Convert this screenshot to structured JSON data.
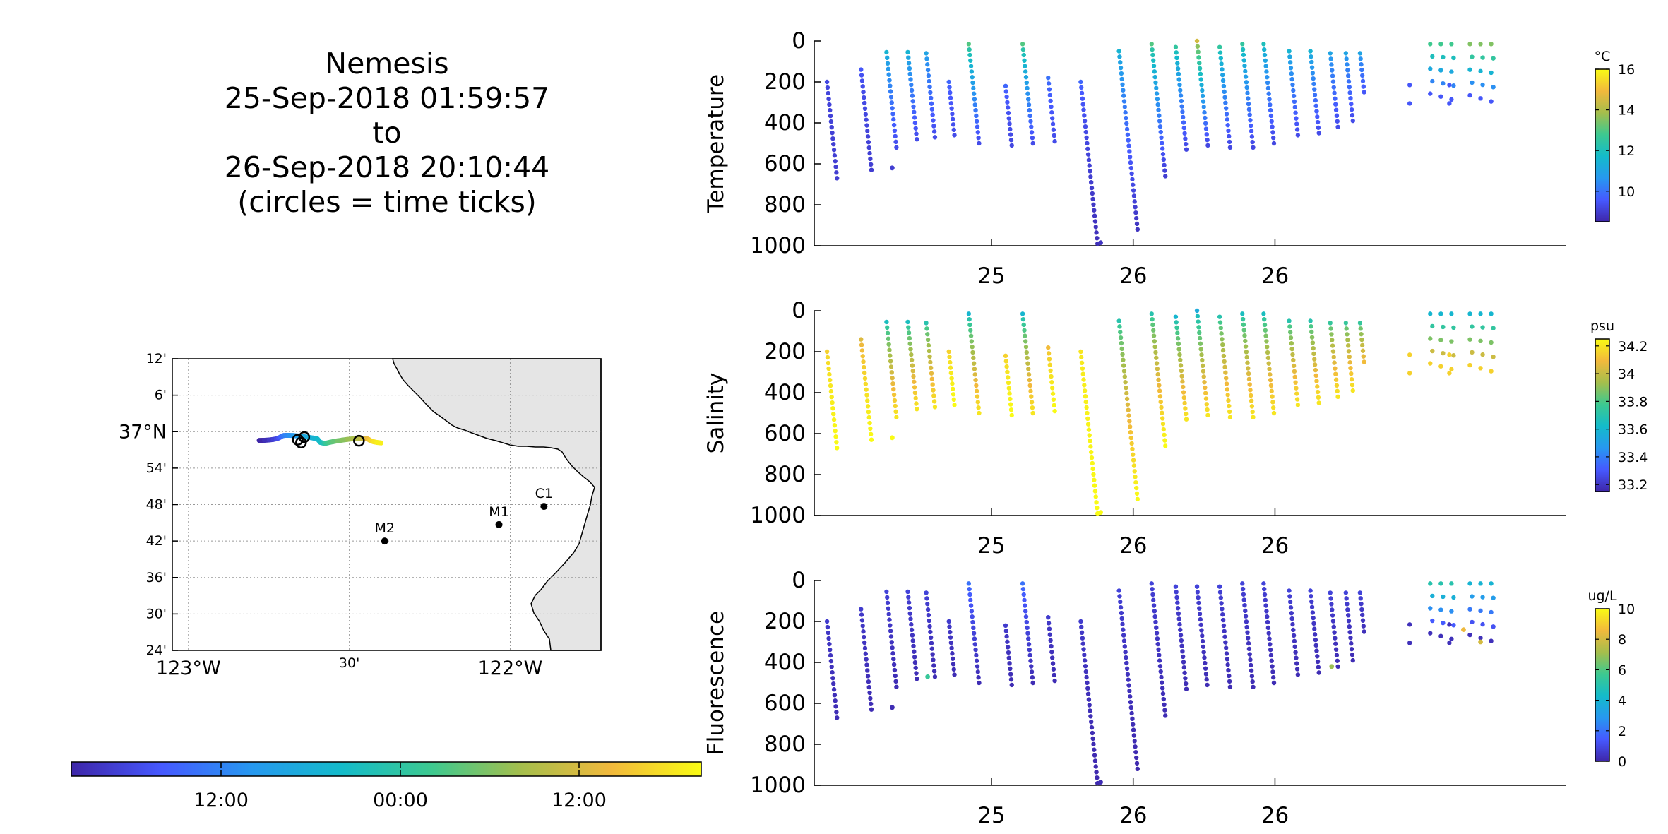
{
  "title_lines": [
    "Nemesis",
    "25-Sep-2018 01:59:57",
    "to",
    "26-Sep-2018 20:10:44",
    "(circles = time ticks)"
  ],
  "colormap_stops": [
    "#3e26a8",
    "#4659ff",
    "#2798f0",
    "#14bbca",
    "#3dc990",
    "#a5be4c",
    "#f2b93c",
    "#f9fb14"
  ],
  "map": {
    "lat_ticks": [
      "12'",
      "6'",
      "37°N",
      "54'",
      "48'",
      "42'",
      "36'",
      "30'",
      "24'"
    ],
    "lon_ticks": [
      "123°W",
      "30'",
      "122°W"
    ],
    "lon_range": [
      -123.05,
      -121.718
    ],
    "lat_range": [
      36.4,
      37.2
    ],
    "land_color": "#e5e5e5",
    "moorings": [
      {
        "label": "M2",
        "lon": -122.39,
        "lat": 36.7
      },
      {
        "label": "M1",
        "lon": -122.035,
        "lat": 36.745
      },
      {
        "label": "C1",
        "lon": -121.895,
        "lat": 36.795
      }
    ],
    "time_colorbar_ticks": [
      "12:00",
      "00:00",
      "12:00"
    ]
  },
  "chart_data": [
    {
      "type": "scatter",
      "ylabel": "Temperature",
      "units": "°C",
      "ylim": [
        1000,
        0
      ],
      "yticks": [
        0,
        200,
        400,
        600,
        800,
        1000
      ],
      "xtick_labels": [
        "25",
        "26",
        "26"
      ],
      "clim": [
        8.5,
        16
      ],
      "colorbar_ticks": [
        10,
        12,
        14,
        16
      ],
      "casts": [
        {
          "x": 0.09,
          "top": 200,
          "bottom": 670,
          "c_top": 9.2,
          "c_bottom": 9.0
        },
        {
          "x": 0.33,
          "top": 140,
          "bottom": 630,
          "c_top": 9.5,
          "c_bottom": 9.0
        },
        {
          "x": 0.51,
          "top": 55,
          "bottom": 520,
          "c_top": 11.5,
          "c_bottom": 9.3
        },
        {
          "x": 0.66,
          "top": 55,
          "bottom": 480,
          "c_top": 11.5,
          "c_bottom": 9.3
        },
        {
          "x": 0.79,
          "top": 60,
          "bottom": 470,
          "c_top": 11.0,
          "c_bottom": 9.3
        },
        {
          "x": 0.95,
          "top": 200,
          "bottom": 460,
          "c_top": 9.8,
          "c_bottom": 9.3
        },
        {
          "x": 1.09,
          "top": 15,
          "bottom": 500,
          "c_top": 13.0,
          "c_bottom": 9.3
        },
        {
          "x": 1.35,
          "top": 220,
          "bottom": 510,
          "c_top": 9.8,
          "c_bottom": 9.2
        },
        {
          "x": 1.47,
          "top": 15,
          "bottom": 500,
          "c_top": 13.0,
          "c_bottom": 9.3
        },
        {
          "x": 1.65,
          "top": 180,
          "bottom": 490,
          "c_top": 10.0,
          "c_bottom": 9.3
        },
        {
          "x": 1.88,
          "top": 200,
          "bottom": 990,
          "c_top": 9.8,
          "c_bottom": 8.7
        },
        {
          "x": 2.15,
          "top": 50,
          "bottom": 920,
          "c_top": 11.5,
          "c_bottom": 8.8
        },
        {
          "x": 2.38,
          "top": 15,
          "bottom": 660,
          "c_top": 13.0,
          "c_bottom": 9.0
        },
        {
          "x": 2.55,
          "top": 30,
          "bottom": 530,
          "c_top": 12.5,
          "c_bottom": 9.2
        },
        {
          "x": 2.7,
          "top": 0,
          "bottom": 510,
          "c_top": 14.5,
          "c_bottom": 9.2
        },
        {
          "x": 2.86,
          "top": 30,
          "bottom": 520,
          "c_top": 12.5,
          "c_bottom": 9.2
        },
        {
          "x": 3.02,
          "top": 15,
          "bottom": 520,
          "c_top": 12.5,
          "c_bottom": 9.2
        },
        {
          "x": 3.17,
          "top": 15,
          "bottom": 500,
          "c_top": 12.0,
          "c_bottom": 9.2
        },
        {
          "x": 3.35,
          "top": 50,
          "bottom": 460,
          "c_top": 11.5,
          "c_bottom": 9.3
        },
        {
          "x": 3.5,
          "top": 50,
          "bottom": 450,
          "c_top": 11.5,
          "c_bottom": 9.3
        },
        {
          "x": 3.64,
          "top": 60,
          "bottom": 420,
          "c_top": 11.0,
          "c_bottom": 9.3
        },
        {
          "x": 3.75,
          "top": 60,
          "bottom": 390,
          "c_top": 11.0,
          "c_bottom": 9.3
        },
        {
          "x": 3.85,
          "top": 60,
          "bottom": 250,
          "c_top": 11.0,
          "c_bottom": 9.5
        }
      ],
      "clusters": [
        {
          "x": 4.42,
          "top": 15,
          "bottom": 300,
          "c_top": 12.8,
          "c_bottom": 9.5
        },
        {
          "x": 4.7,
          "top": 15,
          "bottom": 310,
          "c_top": 13.5,
          "c_bottom": 9.5
        }
      ],
      "isolated": [
        {
          "x": 0.55,
          "depth": 620,
          "c": 9.0
        },
        {
          "x": 2.02,
          "depth": 985,
          "c": 8.8
        }
      ]
    },
    {
      "type": "scatter",
      "ylabel": "Salinity",
      "units": "psu",
      "ylim": [
        1000,
        0
      ],
      "yticks": [
        0,
        200,
        400,
        600,
        800,
        1000
      ],
      "xtick_labels": [
        "25",
        "26",
        "26"
      ],
      "clim": [
        33.15,
        34.25
      ],
      "colorbar_ticks": [
        33.2,
        33.4,
        33.6,
        33.8,
        34,
        34.2
      ],
      "casts": [
        {
          "x": 0.09,
          "top": 200,
          "bottom": 670,
          "c_top": 34.15,
          "c_bottom": 34.25
        },
        {
          "x": 0.33,
          "top": 140,
          "bottom": 630,
          "c_top": 34.05,
          "c_bottom": 34.25
        },
        {
          "x": 0.51,
          "top": 55,
          "bottom": 520,
          "c_top": 33.65,
          "c_bottom": 34.2
        },
        {
          "x": 0.66,
          "top": 55,
          "bottom": 480,
          "c_top": 33.65,
          "c_bottom": 34.2
        },
        {
          "x": 0.79,
          "top": 60,
          "bottom": 470,
          "c_top": 33.7,
          "c_bottom": 34.2
        },
        {
          "x": 0.95,
          "top": 200,
          "bottom": 460,
          "c_top": 34.15,
          "c_bottom": 34.25
        },
        {
          "x": 1.09,
          "top": 15,
          "bottom": 500,
          "c_top": 33.6,
          "c_bottom": 34.2
        },
        {
          "x": 1.35,
          "top": 220,
          "bottom": 510,
          "c_top": 34.15,
          "c_bottom": 34.25
        },
        {
          "x": 1.47,
          "top": 15,
          "bottom": 500,
          "c_top": 33.6,
          "c_bottom": 34.2
        },
        {
          "x": 1.65,
          "top": 180,
          "bottom": 490,
          "c_top": 34.1,
          "c_bottom": 34.25
        },
        {
          "x": 1.88,
          "top": 200,
          "bottom": 990,
          "c_top": 34.2,
          "c_bottom": 34.25
        },
        {
          "x": 2.15,
          "top": 50,
          "bottom": 920,
          "c_top": 33.7,
          "c_bottom": 34.25
        },
        {
          "x": 2.38,
          "top": 15,
          "bottom": 660,
          "c_top": 33.7,
          "c_bottom": 34.25
        },
        {
          "x": 2.55,
          "top": 30,
          "bottom": 530,
          "c_top": 33.6,
          "c_bottom": 34.2
        },
        {
          "x": 2.7,
          "top": 0,
          "bottom": 510,
          "c_top": 33.55,
          "c_bottom": 34.2
        },
        {
          "x": 2.86,
          "top": 30,
          "bottom": 520,
          "c_top": 33.7,
          "c_bottom": 34.2
        },
        {
          "x": 3.02,
          "top": 15,
          "bottom": 520,
          "c_top": 33.65,
          "c_bottom": 34.2
        },
        {
          "x": 3.17,
          "top": 15,
          "bottom": 500,
          "c_top": 33.65,
          "c_bottom": 34.2
        },
        {
          "x": 3.35,
          "top": 50,
          "bottom": 460,
          "c_top": 33.7,
          "c_bottom": 34.2
        },
        {
          "x": 3.5,
          "top": 50,
          "bottom": 450,
          "c_top": 33.7,
          "c_bottom": 34.2
        },
        {
          "x": 3.64,
          "top": 60,
          "bottom": 420,
          "c_top": 33.75,
          "c_bottom": 34.2
        },
        {
          "x": 3.75,
          "top": 60,
          "bottom": 390,
          "c_top": 33.75,
          "c_bottom": 34.2
        },
        {
          "x": 3.85,
          "top": 60,
          "bottom": 250,
          "c_top": 33.75,
          "c_bottom": 34.1
        }
      ],
      "clusters": [
        {
          "x": 4.42,
          "top": 15,
          "bottom": 300,
          "c_top": 33.6,
          "c_bottom": 34.15
        },
        {
          "x": 4.7,
          "top": 15,
          "bottom": 310,
          "c_top": 33.6,
          "c_bottom": 34.15
        }
      ],
      "isolated": [
        {
          "x": 0.55,
          "depth": 620,
          "c": 34.25
        },
        {
          "x": 2.02,
          "depth": 985,
          "c": 34.25
        }
      ]
    },
    {
      "type": "scatter",
      "ylabel": "Fluorescence",
      "units": "ug/L",
      "ylim": [
        1000,
        0
      ],
      "yticks": [
        0,
        200,
        400,
        600,
        800,
        1000
      ],
      "xtick_labels": [
        "25",
        "26",
        "26"
      ],
      "clim": [
        0,
        10
      ],
      "colorbar_ticks": [
        0,
        2,
        4,
        6,
        8,
        10
      ],
      "casts": [
        {
          "x": 0.09,
          "top": 200,
          "bottom": 670,
          "c_top": 0.6,
          "c_bottom": 0.2
        },
        {
          "x": 0.33,
          "top": 140,
          "bottom": 630,
          "c_top": 0.6,
          "c_bottom": 0.2
        },
        {
          "x": 0.51,
          "top": 55,
          "bottom": 520,
          "c_top": 0.8,
          "c_bottom": 0.2
        },
        {
          "x": 0.66,
          "top": 55,
          "bottom": 480,
          "c_top": 0.8,
          "c_bottom": 0.2
        },
        {
          "x": 0.79,
          "top": 60,
          "bottom": 470,
          "c_top": 0.8,
          "c_bottom": 0.2
        },
        {
          "x": 0.95,
          "top": 200,
          "bottom": 460,
          "c_top": 0.6,
          "c_bottom": 0.2
        },
        {
          "x": 1.09,
          "top": 15,
          "bottom": 500,
          "c_top": 2.0,
          "c_bottom": 0.2
        },
        {
          "x": 1.35,
          "top": 220,
          "bottom": 510,
          "c_top": 0.6,
          "c_bottom": 0.2
        },
        {
          "x": 1.47,
          "top": 15,
          "bottom": 500,
          "c_top": 2.0,
          "c_bottom": 0.2
        },
        {
          "x": 1.65,
          "top": 180,
          "bottom": 490,
          "c_top": 0.6,
          "c_bottom": 0.2
        },
        {
          "x": 1.88,
          "top": 200,
          "bottom": 990,
          "c_top": 0.6,
          "c_bottom": 0.1
        },
        {
          "x": 2.15,
          "top": 50,
          "bottom": 920,
          "c_top": 0.8,
          "c_bottom": 0.1
        },
        {
          "x": 2.38,
          "top": 15,
          "bottom": 660,
          "c_top": 0.8,
          "c_bottom": 0.2
        },
        {
          "x": 2.55,
          "top": 30,
          "bottom": 530,
          "c_top": 0.8,
          "c_bottom": 0.2
        },
        {
          "x": 2.7,
          "top": 30,
          "bottom": 510,
          "c_top": 0.8,
          "c_bottom": 0.2
        },
        {
          "x": 2.86,
          "top": 30,
          "bottom": 520,
          "c_top": 0.8,
          "c_bottom": 0.2
        },
        {
          "x": 3.02,
          "top": 15,
          "bottom": 520,
          "c_top": 0.8,
          "c_bottom": 0.2
        },
        {
          "x": 3.17,
          "top": 15,
          "bottom": 500,
          "c_top": 0.8,
          "c_bottom": 0.2
        },
        {
          "x": 3.35,
          "top": 50,
          "bottom": 460,
          "c_top": 0.8,
          "c_bottom": 0.2
        },
        {
          "x": 3.5,
          "top": 50,
          "bottom": 450,
          "c_top": 0.8,
          "c_bottom": 0.2
        },
        {
          "x": 3.64,
          "top": 60,
          "bottom": 420,
          "c_top": 0.8,
          "c_bottom": 0.2
        },
        {
          "x": 3.75,
          "top": 60,
          "bottom": 390,
          "c_top": 0.8,
          "c_bottom": 0.2
        },
        {
          "x": 3.85,
          "top": 60,
          "bottom": 250,
          "c_top": 0.8,
          "c_bottom": 0.3
        }
      ],
      "clusters": [
        {
          "x": 4.42,
          "top": 15,
          "bottom": 300,
          "c_top": 5.0,
          "c_bottom": 0.3
        },
        {
          "x": 4.7,
          "top": 15,
          "bottom": 310,
          "c_top": 4.0,
          "c_bottom": 0.3
        }
      ],
      "isolated": [
        {
          "x": 0.55,
          "depth": 620,
          "c": 0.2
        },
        {
          "x": 0.8,
          "depth": 470,
          "c": 5.5
        },
        {
          "x": 2.02,
          "depth": 985,
          "c": 0.2
        },
        {
          "x": 3.65,
          "depth": 420,
          "c": 7.0
        },
        {
          "x": 4.7,
          "depth": 300,
          "c": 8.0
        },
        {
          "x": 4.58,
          "depth": 240,
          "c": 8.5
        }
      ]
    }
  ]
}
